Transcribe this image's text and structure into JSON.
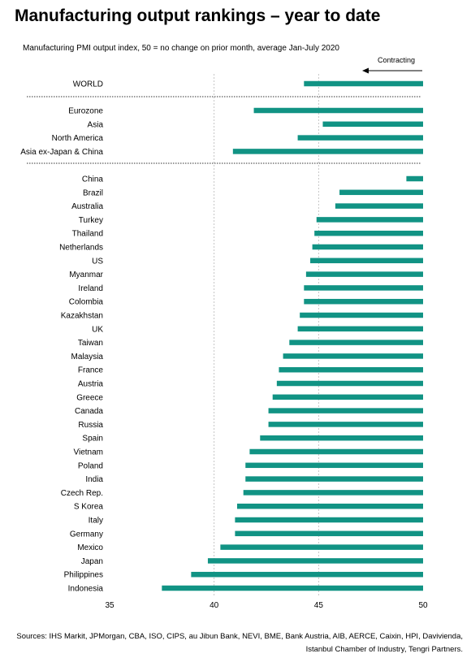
{
  "title": "Manufacturing output rankings – year to date",
  "subtitle": "Manufacturing PMI output index, 50 = no change on prior month, average Jan-July 2020",
  "annotation": "Contracting",
  "source": "Sources: IHS Markit, JPMorgan, CBA, ISO, CIPS, au Jibun Bank, NEVI, BME, Bank Austria, AIB, AERCE, Caixin, HPI, Davivienda, Istanbul Chamber of Industry, Tengri Partners.",
  "colors": {
    "bar": "#119384",
    "grid": "#b8b8b8",
    "separator": "#333333"
  },
  "chart_data": {
    "type": "bar",
    "orientation": "horizontal",
    "baseline": 50,
    "xlim": [
      35,
      50
    ],
    "xticks": [
      35,
      40,
      45,
      50
    ],
    "grid": true,
    "categories": [
      "WORLD",
      "Eurozone",
      "Asia",
      "North America",
      "Asia ex-Japan & China",
      "China",
      "Brazil",
      "Australia",
      "Turkey",
      "Thailand",
      "Netherlands",
      "US",
      "Myanmar",
      "Ireland",
      "Colombia",
      "Kazakhstan",
      "UK",
      "Taiwan",
      "Malaysia",
      "France",
      "Austria",
      "Greece",
      "Canada",
      "Russia",
      "Spain",
      "Vietnam",
      "Poland",
      "India",
      "Czech Rep.",
      "S Korea",
      "Italy",
      "Germany",
      "Mexico",
      "Japan",
      "Philippines",
      "Indonesia"
    ],
    "values": [
      44.3,
      41.9,
      45.2,
      44.0,
      40.9,
      49.2,
      46.0,
      45.8,
      44.9,
      44.8,
      44.7,
      44.6,
      44.4,
      44.3,
      44.3,
      44.1,
      44.0,
      43.6,
      43.3,
      43.1,
      43.0,
      42.8,
      42.6,
      42.6,
      42.2,
      41.7,
      41.5,
      41.5,
      41.4,
      41.1,
      41.0,
      41.0,
      40.3,
      39.7,
      38.9,
      37.5
    ],
    "groups": [
      [
        0
      ],
      [
        1,
        2,
        3,
        4
      ],
      [
        5,
        6,
        7,
        8,
        9,
        10,
        11,
        12,
        13,
        14,
        15,
        16,
        17,
        18,
        19,
        20,
        21,
        22,
        23,
        24,
        25,
        26,
        27,
        28,
        29,
        30,
        31,
        32,
        33,
        34,
        35
      ]
    ]
  }
}
